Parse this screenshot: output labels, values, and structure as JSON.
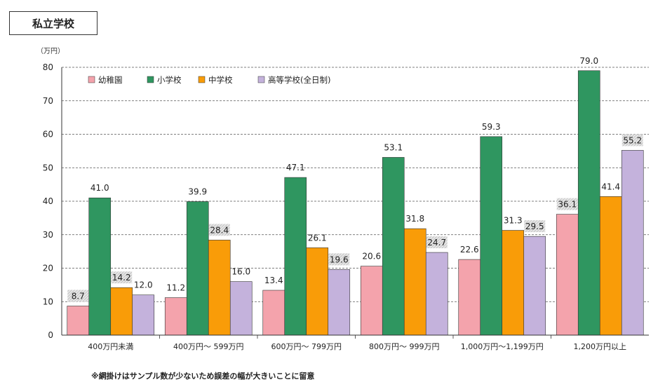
{
  "title": "私立学校",
  "note": "※網掛けはサンプル数が少ないため誤差の幅が大きいことに留意",
  "chart_data": {
    "type": "bar",
    "unit_label": "（万円）",
    "ylim": [
      0,
      80
    ],
    "yticks": [
      0,
      10,
      20,
      30,
      40,
      50,
      60,
      70,
      80
    ],
    "grid": true,
    "legend_position": "top-left",
    "categories": [
      "400万円未満",
      "400万円～ 599万円",
      "600万円～ 799万円",
      "800万円～ 999万円",
      "1,000万円～1,199万円",
      "1,200万円以上"
    ],
    "series": [
      {
        "name": "幼稚園",
        "color": "#f4a3ac",
        "values": [
          8.7,
          11.2,
          13.4,
          20.6,
          22.6,
          36.1
        ],
        "hatched": [
          true,
          false,
          false,
          false,
          false,
          true
        ]
      },
      {
        "name": "小学校",
        "color": "#2f9660",
        "values": [
          41.0,
          39.9,
          47.1,
          53.1,
          59.3,
          79.0
        ],
        "hatched": [
          false,
          false,
          false,
          false,
          false,
          false
        ]
      },
      {
        "name": "中学校",
        "color": "#f99c08",
        "values": [
          14.2,
          28.4,
          26.1,
          31.8,
          31.3,
          41.4
        ],
        "hatched": [
          true,
          true,
          false,
          false,
          false,
          false
        ]
      },
      {
        "name": "高等学校(全日制)",
        "color": "#c4b2dc",
        "values": [
          12.0,
          16.0,
          19.6,
          24.7,
          29.5,
          55.2
        ],
        "hatched": [
          false,
          false,
          true,
          true,
          true,
          true
        ]
      }
    ]
  }
}
